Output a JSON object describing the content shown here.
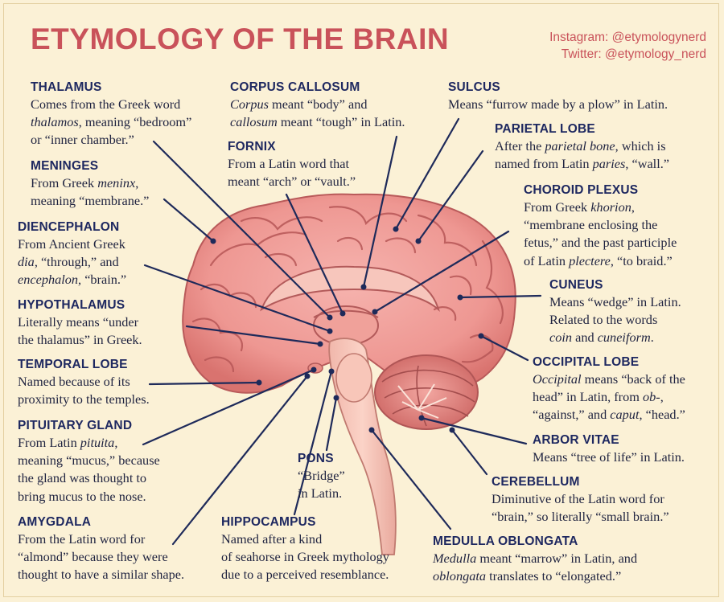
{
  "title": "ETYMOLOGY OF THE BRAIN",
  "social": {
    "instagram": "Instagram: @etymologynerd",
    "twitter": "Twitter: @etymology_nerd"
  },
  "terms": {
    "thalamus": {
      "head": "THALAMUS",
      "l1": "Comes from the Greek word",
      "l2a": "thalamos",
      "l2b": ", meaning “bedroom”",
      "l3": "or “inner chamber.”"
    },
    "meninges": {
      "head": "MENINGES",
      "l1a": "From Greek ",
      "l1b": "meninx",
      "l1c": ",",
      "l2": "meaning “membrane.”"
    },
    "diencephalon": {
      "head": "DIENCEPHALON",
      "l1": "From Ancient Greek",
      "l2a": "dia",
      "l2b": ", “through,” and",
      "l3a": "encephalon",
      "l3b": ", “brain.”"
    },
    "hypothalamus": {
      "head": "HYPOTHALAMUS",
      "l1": "Literally means “under",
      "l2": "the thalamus” in Greek."
    },
    "temporal": {
      "head": "TEMPORAL LOBE",
      "l1": "Named because of its",
      "l2": "proximity to the temples."
    },
    "pituitary": {
      "head": "PITUITARY GLAND",
      "l1a": "From Latin ",
      "l1b": "pituita",
      "l1c": ",",
      "l2": "meaning “mucus,” because",
      "l3": "the gland was thought to",
      "l4": "bring mucus to the nose."
    },
    "amygdala": {
      "head": "AMYGDALA",
      "l1": "From the Latin word for",
      "l2": "“almond” because they were",
      "l3": "thought to have a similar shape."
    },
    "corpus": {
      "head": "CORPUS CALLOSUM",
      "l1a": "Corpus",
      "l1b": " meant “body” and",
      "l2a": "callosum",
      "l2b": " meant “tough” in Latin."
    },
    "fornix": {
      "head": "FORNIX",
      "l1": "From a Latin word that",
      "l2": "meant “arch” or “vault.”"
    },
    "pons": {
      "head": "PONS",
      "l1": "“Bridge”",
      "l2": "in Latin."
    },
    "hippocampus": {
      "head": "HIPPOCAMPUS",
      "l1": "Named after a kind",
      "l2": "of seahorse in Greek mythology",
      "l3": "due to a perceived resemblance."
    },
    "sulcus": {
      "head": "SULCUS",
      "l1": "Means “furrow made by a plow” in Latin."
    },
    "parietal": {
      "head": "PARIETAL LOBE",
      "l1a": "After the ",
      "l1b": "parietal bone",
      "l1c": ", which is",
      "l2a": "named from Latin ",
      "l2b": "paries",
      "l2c": ", “wall.”"
    },
    "choroid": {
      "head": "CHOROID PLEXUS",
      "l1a": "From Greek ",
      "l1b": "khorion",
      "l1c": ",",
      "l2": "“membrane enclosing the",
      "l3": "fetus,” and the past participle",
      "l4a": "of Latin ",
      "l4b": "plectere",
      "l4c": ", “to braid.”"
    },
    "cuneus": {
      "head": "CUNEUS",
      "l1": "Means “wedge” in Latin.",
      "l2": "Related to the words",
      "l3a": "coin",
      "l3b": " and ",
      "l3c": "cuneiform",
      "l3d": "."
    },
    "occipital": {
      "head": "OCCIPITAL LOBE",
      "l1a": "Occipital",
      "l1b": " means “back of the",
      "l2a": "head” in Latin, from ",
      "l2b": "ob-",
      "l2c": ",",
      "l3a": "“against,” and ",
      "l3b": "caput",
      "l3c": ", “head.”"
    },
    "arbor": {
      "head": "ARBOR VITAE",
      "l1": "Means “tree of life” in Latin."
    },
    "cerebellum": {
      "head": "CEREBELLUM",
      "l1": "Diminutive of the Latin word for",
      "l2": "“brain,” so literally “small brain.”"
    },
    "medulla": {
      "head": "MEDULLA OBLONGATA",
      "l1a": "Medulla",
      "l1b": " meant “marrow” in Latin, and",
      "l2a": "oblongata",
      "l2b": " translates to “elongated.”"
    }
  }
}
